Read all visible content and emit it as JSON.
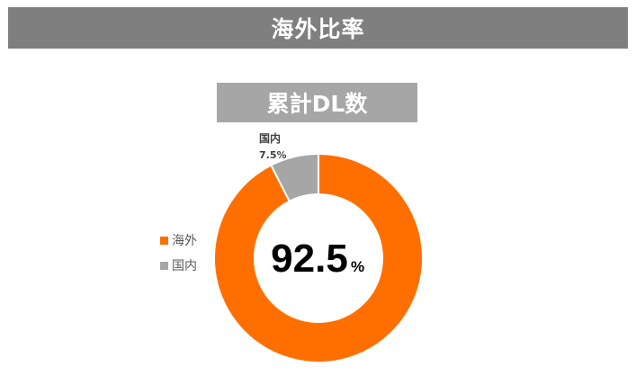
{
  "header": {
    "title": "海外比率"
  },
  "colors": {
    "overseas": "#ff6f00",
    "domestic": "#a6a6a6",
    "banner": "#7f7f7f"
  },
  "chart_data": {
    "type": "pie",
    "variant": "donut",
    "title": "累計DL数",
    "center_value": "92.5",
    "center_unit": "%",
    "slices": [
      {
        "label": "海外",
        "value": 92.5,
        "color": "#ff6f00",
        "data_label": ""
      },
      {
        "label": "国内",
        "value": 7.5,
        "color": "#a6a6a6",
        "data_label": "7.5%"
      }
    ],
    "legend": {
      "position": "left",
      "entries": [
        {
          "label": "海外",
          "color": "#ff6f00"
        },
        {
          "label": "国内",
          "color": "#a6a6a6"
        }
      ]
    }
  }
}
